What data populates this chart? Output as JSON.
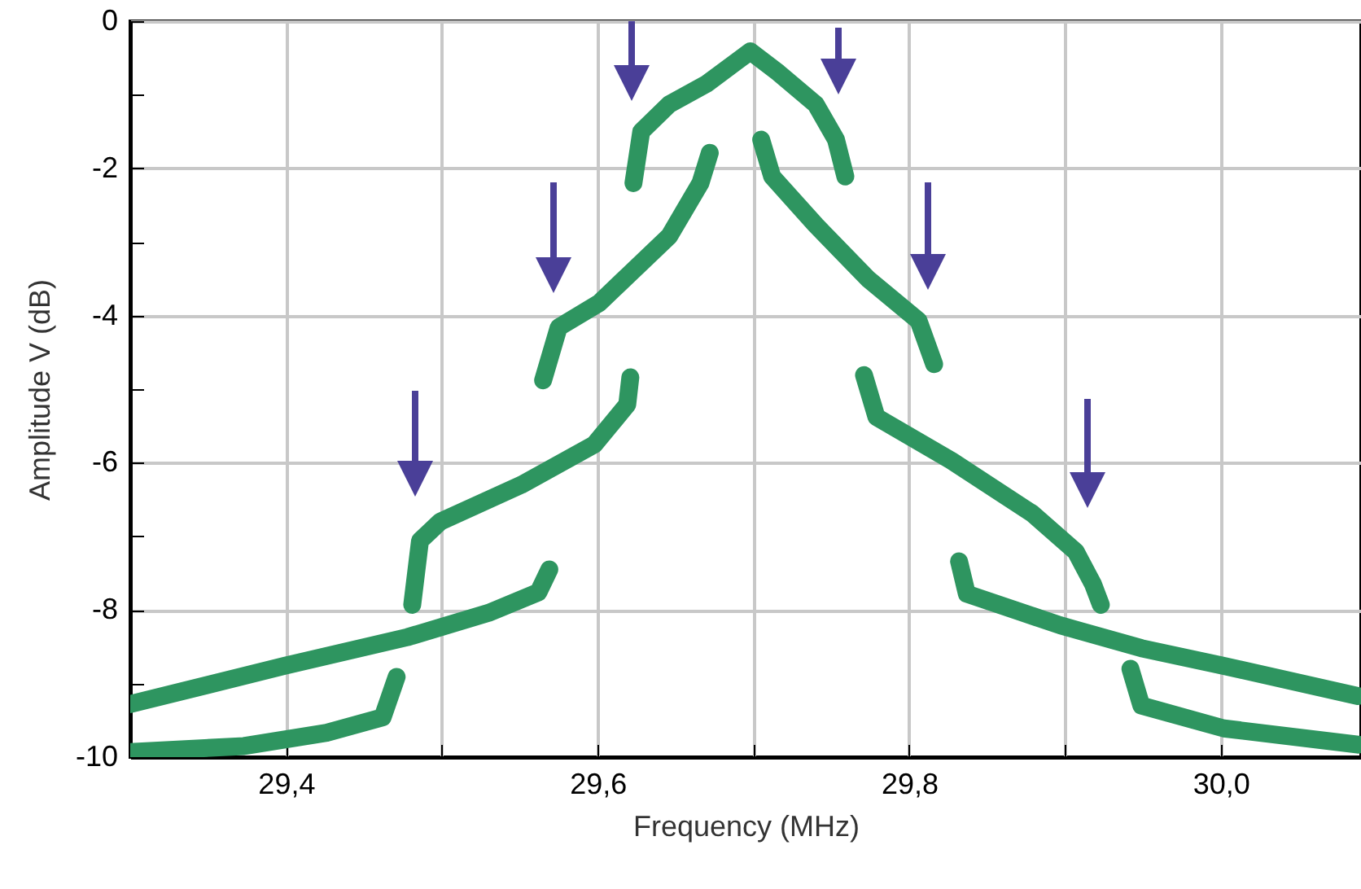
{
  "chart_data": {
    "type": "line",
    "xlabel": "Frequency (MHz)",
    "ylabel": "Amplitude V (dB)",
    "xlim": [
      29.3,
      30.09
    ],
    "ylim": [
      -10,
      0
    ],
    "xticks": [
      {
        "value": 29.4,
        "label": "29,4"
      },
      {
        "value": 29.5,
        "label": null
      },
      {
        "value": 29.6,
        "label": "29,6"
      },
      {
        "value": 29.7,
        "label": null
      },
      {
        "value": 29.8,
        "label": "29,8"
      },
      {
        "value": 29.9,
        "label": null
      },
      {
        "value": 30.0,
        "label": "30,0"
      }
    ],
    "yticks": [
      0,
      {
        "value": -1,
        "label": null
      },
      -2,
      {
        "value": -3,
        "label": null
      },
      -4,
      {
        "value": -5,
        "label": null
      },
      -6,
      {
        "value": -7,
        "label": null
      },
      -8,
      {
        "value": -9,
        "label": null
      },
      -10
    ],
    "grid": true,
    "line_style": "solid",
    "series": [
      {
        "color": "#2e9560",
        "x": [
          29.3,
          29.373,
          29.426,
          29.462,
          29.471
        ],
        "values": [
          -9.93,
          -9.85,
          -9.67,
          -9.46,
          -8.91
        ]
      },
      {
        "color": "#2e9560",
        "x": [
          29.3,
          29.399,
          29.478,
          29.53,
          29.562,
          29.569
        ],
        "values": [
          -9.28,
          -8.76,
          -8.37,
          -8.04,
          -7.76,
          -7.45
        ]
      },
      {
        "color": "#2e9560",
        "x": [
          29.481,
          29.486,
          29.499,
          29.551,
          29.598,
          29.619,
          29.621
        ],
        "values": [
          -7.93,
          -7.06,
          -6.8,
          -6.3,
          -5.75,
          -5.21,
          -4.84
        ]
      },
      {
        "color": "#2e9560",
        "x": [
          29.565,
          29.575,
          29.601,
          29.646,
          29.666,
          29.672
        ],
        "values": [
          -4.88,
          -4.16,
          -3.83,
          -2.92,
          -2.2,
          -1.79
        ]
      },
      {
        "color": "#2e9560",
        "x": [
          29.623,
          29.628,
          29.646,
          29.67,
          29.691,
          29.698,
          29.716,
          29.74,
          29.753,
          29.759
        ],
        "values": [
          -2.2,
          -1.5,
          -1.13,
          -0.85,
          -0.52,
          -0.41,
          -0.7,
          -1.13,
          -1.61,
          -2.11
        ]
      },
      {
        "color": "#2e9560",
        "x": [
          29.705,
          29.712,
          29.74,
          29.774,
          29.806,
          29.816
        ],
        "values": [
          -1.61,
          -2.11,
          -2.77,
          -3.51,
          -4.07,
          -4.66
        ]
      },
      {
        "color": "#2e9560",
        "x": [
          29.771,
          29.779,
          29.827,
          29.879,
          29.907,
          29.918,
          29.923
        ],
        "values": [
          -4.81,
          -5.38,
          -5.97,
          -6.69,
          -7.21,
          -7.65,
          -7.93
        ]
      },
      {
        "color": "#2e9560",
        "x": [
          29.832,
          29.837,
          29.897,
          29.949,
          30.002,
          30.088
        ],
        "values": [
          -7.34,
          -7.78,
          -8.21,
          -8.52,
          -8.76,
          -9.17
        ]
      },
      {
        "color": "#2e9560",
        "x": [
          29.942,
          29.949,
          30.002,
          30.088
        ],
        "values": [
          -8.8,
          -9.3,
          -9.61,
          -9.83
        ]
      }
    ]
  }
}
